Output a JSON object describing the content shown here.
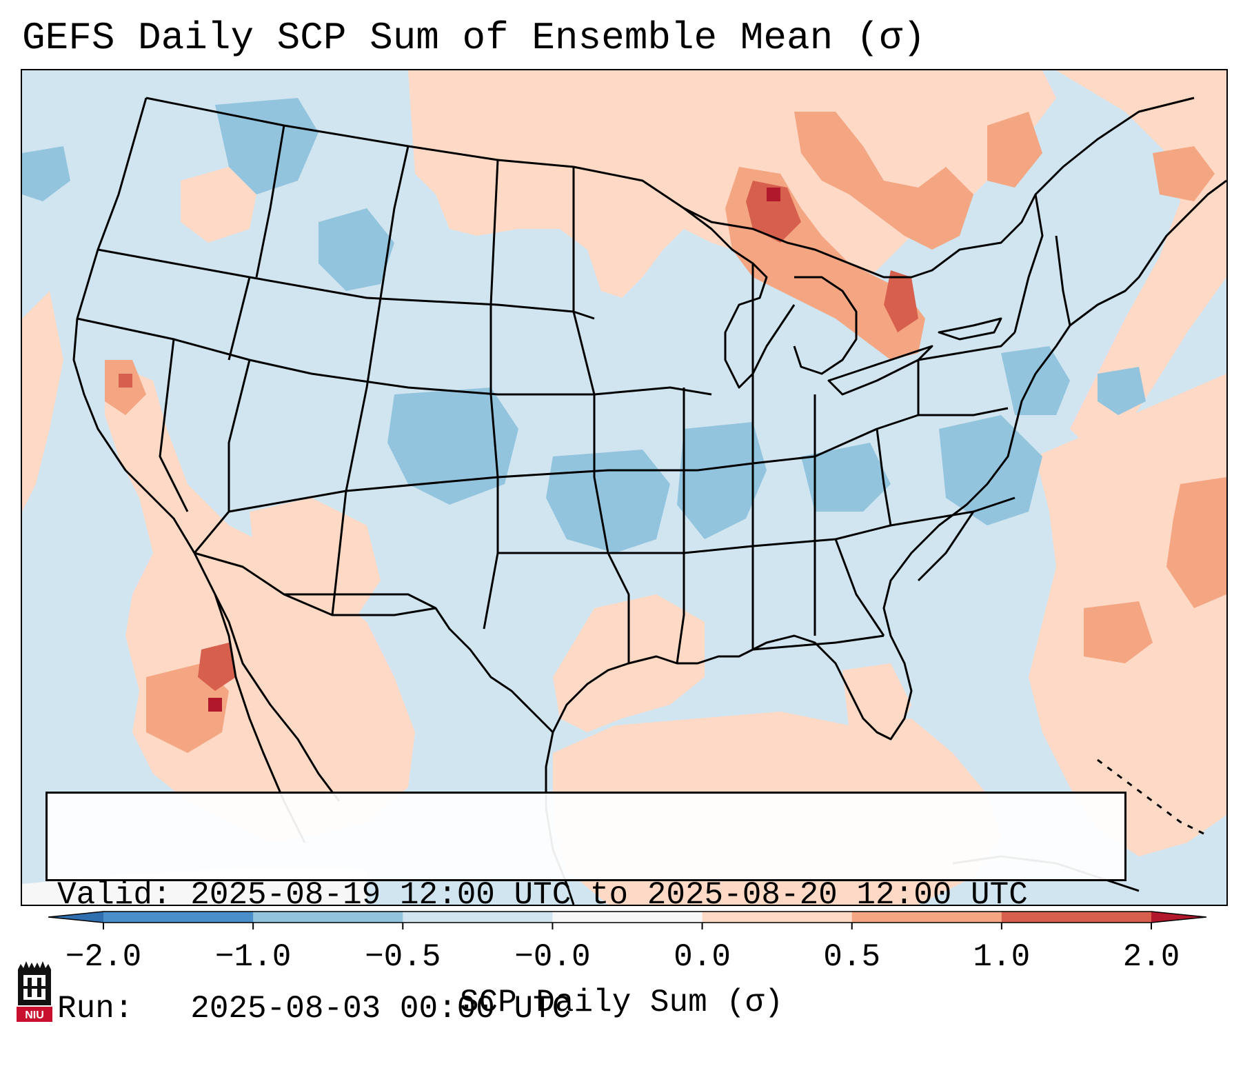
{
  "title": "GEFS Daily SCP Sum of Ensemble Mean (σ)",
  "map": {
    "region": "Contiguous United States",
    "background_field": "SCP daily sum anomaly (σ)"
  },
  "info": {
    "valid_line": "Valid: 2025-08-19 12:00 UTC to 2025-08-20 12:00 UTC",
    "run_line": "Run:   2025-08-03 00:00 UTC"
  },
  "colorbar": {
    "label": "SCP Daily Sum (σ)",
    "ticks": [
      "−2.0",
      "−1.0",
      "−0.5",
      "−0.0",
      "0.0",
      "0.5",
      "1.0",
      "2.0"
    ],
    "colors": [
      "#4a8fc9",
      "#92c4de",
      "#d1e5f0",
      "#f7f7f7",
      "#fdd9c6",
      "#f4a582",
      "#d6604d",
      "#b2182b"
    ],
    "under_color": "#2f6fb0",
    "over_color": "#b2182b"
  },
  "logo": {
    "text": "NIU",
    "icon": "university-building-icon",
    "color": "#c8102e"
  }
}
